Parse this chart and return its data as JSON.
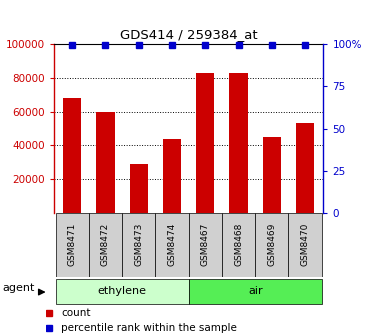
{
  "title": "GDS414 / 259384_at",
  "samples": [
    "GSM8471",
    "GSM8472",
    "GSM8473",
    "GSM8474",
    "GSM8467",
    "GSM8468",
    "GSM8469",
    "GSM8470"
  ],
  "counts": [
    68000,
    60000,
    29000,
    44000,
    82500,
    83000,
    45000,
    53000
  ],
  "percentiles": [
    99.5,
    99.5,
    99.5,
    99.5,
    99.5,
    99.5,
    99.5,
    99.5
  ],
  "groups": [
    {
      "label": "ethylene",
      "indices": [
        0,
        1,
        2,
        3
      ],
      "color": "#ccffcc"
    },
    {
      "label": "air",
      "indices": [
        4,
        5,
        6,
        7
      ],
      "color": "#55ee55"
    }
  ],
  "bar_color": "#cc0000",
  "dot_color": "#0000cc",
  "ylim_left": [
    0,
    100000
  ],
  "ylim_right": [
    0,
    100
  ],
  "yticks_left": [
    20000,
    40000,
    60000,
    80000,
    100000
  ],
  "ytick_labels_left": [
    "20000",
    "40000",
    "60000",
    "80000",
    "100000"
  ],
  "yticks_right": [
    0,
    25,
    50,
    75,
    100
  ],
  "ytick_labels_right": [
    "0",
    "25",
    "50",
    "75",
    "100%"
  ],
  "background_color": "#ffffff",
  "agent_label": "agent",
  "legend_count": "count",
  "legend_pct": "percentile rank within the sample",
  "bar_width": 0.55,
  "dot_size": 5
}
